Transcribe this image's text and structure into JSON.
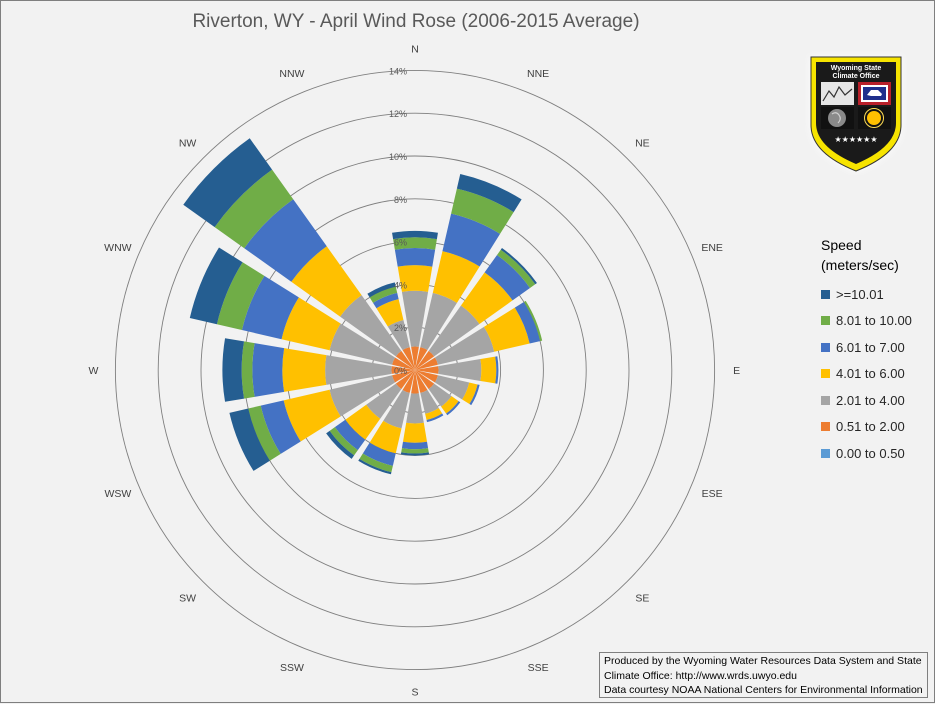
{
  "chart_data": {
    "type": "wind-rose",
    "title": "Riverton, WY - April Wind Rose (2006-2015 Average)",
    "radial_ticks": [
      "0%",
      "2%",
      "4%",
      "6%",
      "8%",
      "10%",
      "12%",
      "14%"
    ],
    "radial_max": 14,
    "directions": [
      "N",
      "NNE",
      "NE",
      "ENE",
      "E",
      "ESE",
      "SE",
      "SSE",
      "S",
      "SSW",
      "SW",
      "WSW",
      "W",
      "WNW",
      "NW",
      "NNW"
    ],
    "legend_title": [
      "Speed",
      "(meters/sec)"
    ],
    "bins": [
      {
        "name": ">=10.01",
        "color": "#255e91"
      },
      {
        "name": "8.01 to 10.00",
        "color": "#70ad47"
      },
      {
        "name": "6.01 to 7.00",
        "color": "#4472c4"
      },
      {
        "name": "4.01 to 6.00",
        "color": "#ffc000"
      },
      {
        "name": "2.01 to 4.00",
        "color": "#a5a5a5"
      },
      {
        "name": "0.51 to 2.00",
        "color": "#ed7d31"
      },
      {
        "name": "0.00 to 0.50",
        "color": "#5b9bd5"
      }
    ],
    "bin_order_from_center": [
      "0.00 to 0.50",
      "0.51 to 2.00",
      "2.01 to 4.00",
      "4.01 to 6.00",
      "6.01 to 7.00",
      "8.01 to 10.00",
      ">=10.01"
    ],
    "values_by_direction": {
      "N": [
        0,
        1.1,
        2.6,
        1.2,
        0.8,
        0.5,
        0.3
      ],
      "NNE": [
        0,
        1.1,
        2.6,
        2.0,
        1.8,
        1.2,
        0.7
      ],
      "NE": [
        0,
        1.1,
        2.6,
        1.9,
        1.0,
        0.3,
        0.1
      ],
      "ENE": [
        0,
        1.1,
        2.7,
        1.7,
        0.5,
        0.1,
        0.0
      ],
      "E": [
        0,
        1.1,
        2.0,
        0.7,
        0.1,
        0.0,
        0.0
      ],
      "ESE": [
        0,
        1.1,
        1.5,
        0.4,
        0.1,
        0.0,
        0.0
      ],
      "SE": [
        0,
        1.1,
        1.0,
        0.4,
        0.1,
        0.0,
        0.0
      ],
      "SSE": [
        0,
        1.1,
        1.0,
        0.3,
        0.1,
        0.0,
        0.0
      ],
      "S": [
        0,
        1.1,
        1.4,
        0.9,
        0.3,
        0.2,
        0.1
      ],
      "SSW": [
        0,
        1.1,
        1.7,
        1.2,
        0.6,
        0.3,
        0.1
      ],
      "SW": [
        0,
        1.1,
        1.7,
        1.2,
        0.6,
        0.3,
        0.2
      ],
      "WSW": [
        0,
        1.1,
        3.0,
        2.2,
        1.1,
        0.6,
        0.9
      ],
      "W": [
        0,
        1.1,
        3.1,
        2.0,
        1.4,
        0.5,
        0.9
      ],
      "WNW": [
        0,
        1.1,
        3.0,
        2.3,
        1.9,
        1.2,
        1.3
      ],
      "NW": [
        0,
        1.1,
        3.2,
        2.8,
        2.7,
        1.7,
        1.8
      ],
      "NNW": [
        0,
        1.1,
        1.3,
        1.0,
        0.3,
        0.3,
        0.2
      ]
    },
    "grid": true,
    "legend_position": "right"
  },
  "seal": {
    "text_line1": "Wyoming State",
    "text_line2": "Climate Office",
    "colors": {
      "border": "#f7e400",
      "field": "#1a1a1a",
      "flag": "#1f2f8c"
    }
  },
  "credits": [
    "Produced by the Wyoming Water Resources Data System and State",
    "Climate Office: http://www.wrds.uwyo.edu",
    "Data courtesy NOAA National Centers for Environmental Information"
  ]
}
